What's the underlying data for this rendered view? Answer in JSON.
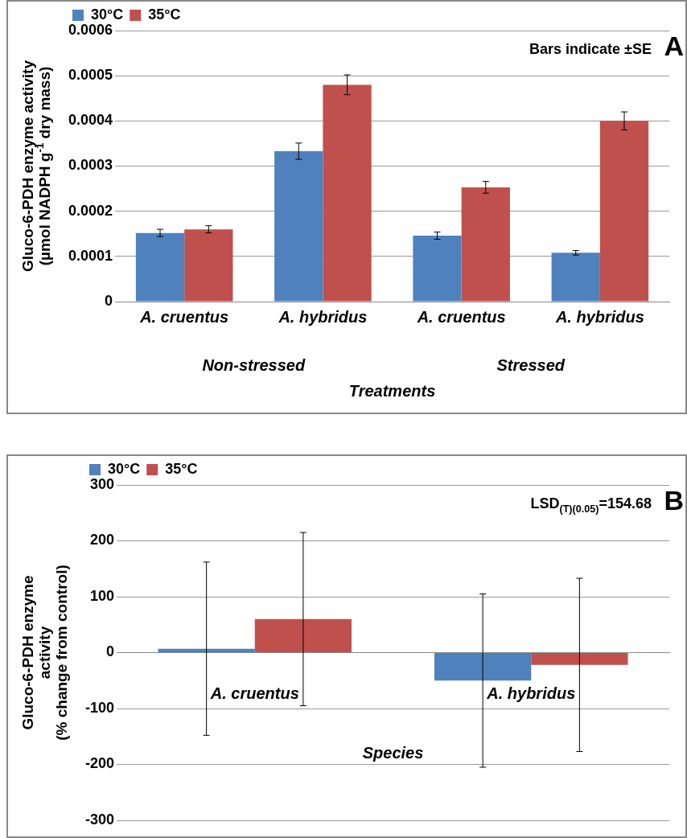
{
  "chart_data": [
    {
      "type": "bar",
      "categories": [
        "A. cruentus",
        "A. hybridus",
        "A. cruentus",
        "A. hybridus"
      ],
      "series": [
        {
          "name": "30°C",
          "color": "#4f81bd",
          "values": [
            0.000152,
            0.000333,
            0.000146,
            0.000108
          ],
          "errors": [
            8e-06,
            1.8e-05,
            8e-06,
            5e-06
          ]
        },
        {
          "name": "35°C",
          "color": "#c0504d",
          "values": [
            0.00016,
            0.00048,
            0.000253,
            0.0004
          ],
          "errors": [
            8e-06,
            2.2e-05,
            1.3e-05,
            2e-05
          ]
        }
      ],
      "xlabel": "Treatments",
      "ylabel": "Gluco-6-PDH enzyme activity\n(µmol NADPH g$^{-1}$ dry mass)",
      "ylim": [
        0,
        0.0006
      ],
      "yticks": [
        0,
        0.0001,
        0.0002,
        0.0003,
        0.0004,
        0.0005,
        0.0006
      ],
      "grid": "y",
      "legend": "top left",
      "annotations": [
        "Bars indicate ±SE",
        "A",
        "Non-stressed",
        "Stressed"
      ]
    },
    {
      "type": "bar",
      "categories": [
        "A. cruentus",
        "A. hybridus"
      ],
      "series": [
        {
          "name": "30°C",
          "color": "#4f81bd",
          "values": [
            7,
            -50
          ],
          "errors": [
            155,
            155
          ]
        },
        {
          "name": "35°C",
          "color": "#c0504d",
          "values": [
            60,
            -22
          ],
          "errors": [
            155,
            155
          ]
        }
      ],
      "xlabel": "Species",
      "ylabel": "Gluco-6-PDH enzyme\nactivity\n(% change from control)",
      "ylim": [
        -300,
        300
      ],
      "yticks": [
        -300,
        -200,
        -100,
        0,
        100,
        200,
        300
      ],
      "grid": "y",
      "legend": "top left",
      "annotations": [
        "LSD$_{(T)(0.05)}$=154.68",
        "B"
      ]
    }
  ]
}
